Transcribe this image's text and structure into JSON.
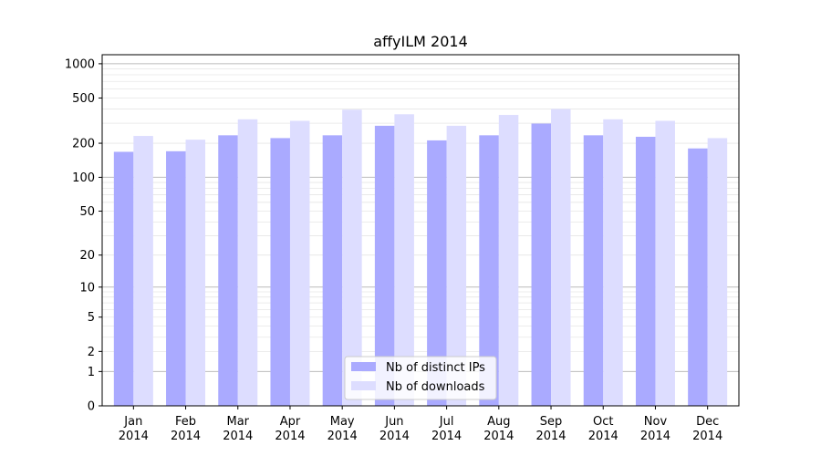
{
  "chart_data": {
    "type": "bar",
    "title": "affyILM 2014",
    "xlabel": "",
    "ylabel": "",
    "y_scale": "log(1+y)",
    "ylim": [
      0,
      1200
    ],
    "y_ticks": [
      "0",
      "1",
      "2",
      "5",
      "10",
      "20",
      "50",
      "100",
      "200",
      "500",
      "1000"
    ],
    "categories": [
      [
        "Jan",
        "2014"
      ],
      [
        "Feb",
        "2014"
      ],
      [
        "Mar",
        "2014"
      ],
      [
        "Apr",
        "2014"
      ],
      [
        "May",
        "2014"
      ],
      [
        "Jun",
        "2014"
      ],
      [
        "Jul",
        "2014"
      ],
      [
        "Aug",
        "2014"
      ],
      [
        "Sep",
        "2014"
      ],
      [
        "Oct",
        "2014"
      ],
      [
        "Nov",
        "2014"
      ],
      [
        "Dec",
        "2014"
      ]
    ],
    "series": [
      {
        "name": "Nb of distinct IPs",
        "color": "#aaaaff",
        "values": [
          168,
          170,
          235,
          222,
          235,
          285,
          212,
          235,
          298,
          235,
          228,
          180
        ]
      },
      {
        "name": "Nb of downloads",
        "color": "#ddddff",
        "values": [
          232,
          215,
          325,
          315,
          395,
          360,
          285,
          355,
          400,
          325,
          315,
          222
        ]
      }
    ],
    "legend": "bottom-center",
    "grid": true
  }
}
